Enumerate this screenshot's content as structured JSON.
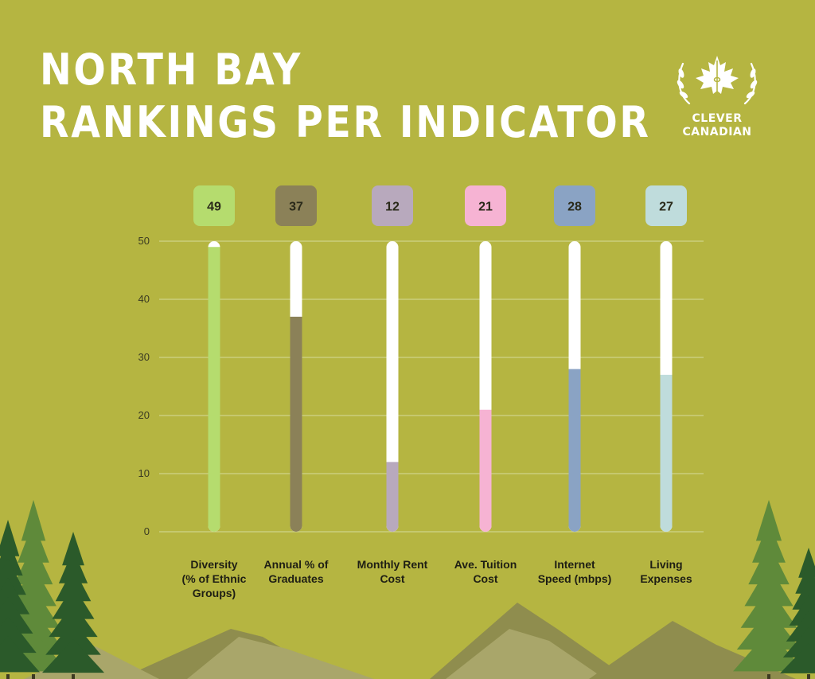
{
  "header": {
    "title_line_1": "NORTH BAY",
    "title_line_2": "RANKINGS PER INDICATOR"
  },
  "logo": {
    "line_1": "CLEVER",
    "line_2": "CANADIAN",
    "icon": "maple-leaf-tower-wreath-icon"
  },
  "colors": {
    "background": "#b5b541",
    "gridline": "#cfd48a",
    "track": "#ffffff",
    "axis_text": "#3a3a22",
    "label_text": "#1e1e14",
    "mountain": "#8f8d4e",
    "mountain_light": "#a9a66a",
    "tree_dark": "#2b5a2a",
    "tree_light": "#5f8a3a"
  },
  "chart_data": {
    "type": "bar",
    "categories": [
      "Diversity (% of Ethnic Groups)",
      "Annual % of Graduates",
      "Monthly Rent Cost",
      "Ave. Tuition Cost",
      "Internet Speed (mbps)",
      "Living Expenses"
    ],
    "category_label_lines": [
      [
        "Diversity",
        "(% of Ethnic",
        "Groups)"
      ],
      [
        "Annual % of",
        "Graduates"
      ],
      [
        "Monthly Rent",
        "Cost"
      ],
      [
        "Ave. Tuition",
        "Cost"
      ],
      [
        "Internet",
        "Speed (mbps)"
      ],
      [
        "Living",
        "Expenses"
      ]
    ],
    "values": [
      49,
      37,
      12,
      21,
      28,
      27
    ],
    "value_labels": [
      "49",
      "37",
      "12",
      "21",
      "28",
      "27"
    ],
    "bar_colors": [
      "#b5dc6e",
      "#8b8158",
      "#b8a9bd",
      "#f6b3d3",
      "#8aa3c4",
      "#bfdcdc"
    ],
    "ylim": [
      0,
      50
    ],
    "yticks": [
      0,
      10,
      20,
      30,
      40,
      50
    ],
    "grid": true,
    "legend": "none",
    "title": "NORTH BAY RANKINGS PER INDICATOR",
    "xlabel": "",
    "ylabel": ""
  }
}
